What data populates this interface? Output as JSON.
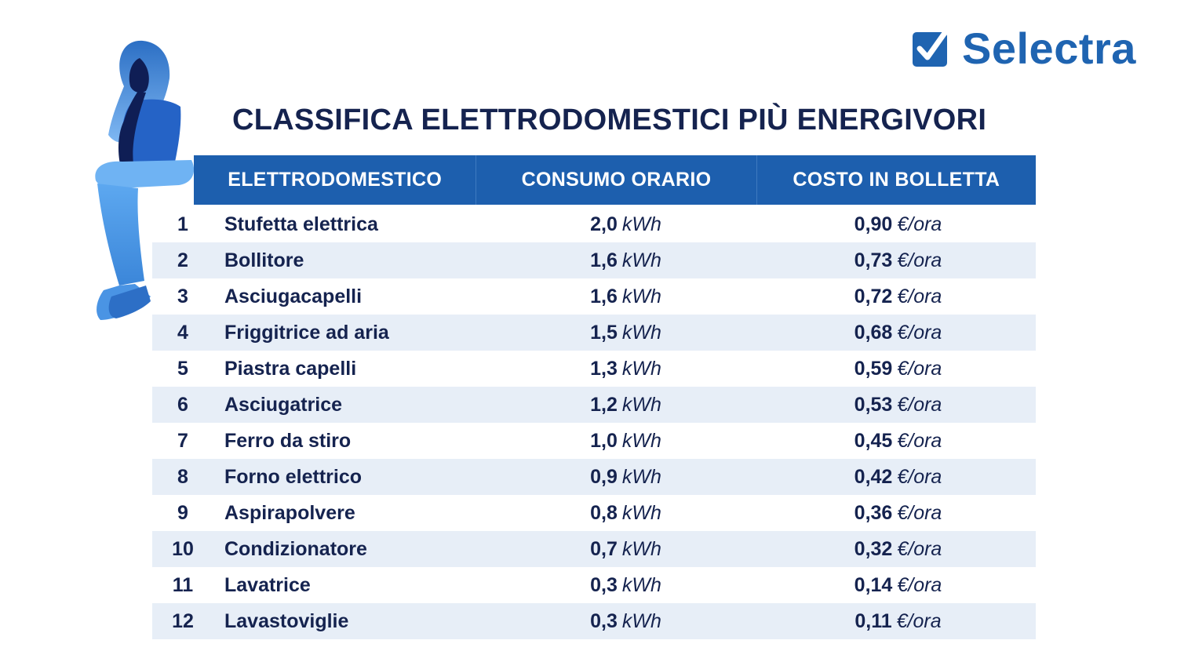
{
  "brand": {
    "name": "Selectra",
    "color": "#1f64b1"
  },
  "title": "CLASSIFICA ELETTRODOMESTICI PIÙ ENERGIVORI",
  "table": {
    "headers": {
      "appliance": "ELETTRODOMESTICO",
      "consumption": "CONSUMO ORARIO",
      "cost": "COSTO IN BOLLETTA"
    },
    "units": {
      "consumption": "kWh",
      "cost": "€/ora"
    },
    "rows": [
      {
        "rank": "1",
        "name": "Stufetta elettrica",
        "consumption": "2,0",
        "cost": "0,90"
      },
      {
        "rank": "2",
        "name": "Bollitore",
        "consumption": "1,6",
        "cost": "0,73"
      },
      {
        "rank": "3",
        "name": "Asciugacapelli",
        "consumption": "1,6",
        "cost": "0,72"
      },
      {
        "rank": "4",
        "name": "Friggitrice ad aria",
        "consumption": "1,5",
        "cost": "0,68"
      },
      {
        "rank": "5",
        "name": "Piastra capelli",
        "consumption": "1,3",
        "cost": "0,59"
      },
      {
        "rank": "6",
        "name": "Asciugatrice",
        "consumption": "1,2",
        "cost": "0,53"
      },
      {
        "rank": "7",
        "name": "Ferro da stiro",
        "consumption": "1,0",
        "cost": "0,45"
      },
      {
        "rank": "8",
        "name": "Forno elettrico",
        "consumption": "0,9",
        "cost": "0,42"
      },
      {
        "rank": "9",
        "name": "Aspirapolvere",
        "consumption": "0,8",
        "cost": "0,36"
      },
      {
        "rank": "10",
        "name": "Condizionatore",
        "consumption": "0,7",
        "cost": "0,32"
      },
      {
        "rank": "11",
        "name": "Lavatrice",
        "consumption": "0,3",
        "cost": "0,14"
      },
      {
        "rank": "12",
        "name": "Lavastoviglie",
        "consumption": "0,3",
        "cost": "0,11"
      }
    ]
  },
  "colors": {
    "header_bg": "#1d5fae",
    "row_alt_bg": "#e7eef7",
    "text_dark": "#15234f"
  },
  "icons": {
    "logo": "check-box-icon",
    "illustration": "thinking-woman-illustration"
  }
}
